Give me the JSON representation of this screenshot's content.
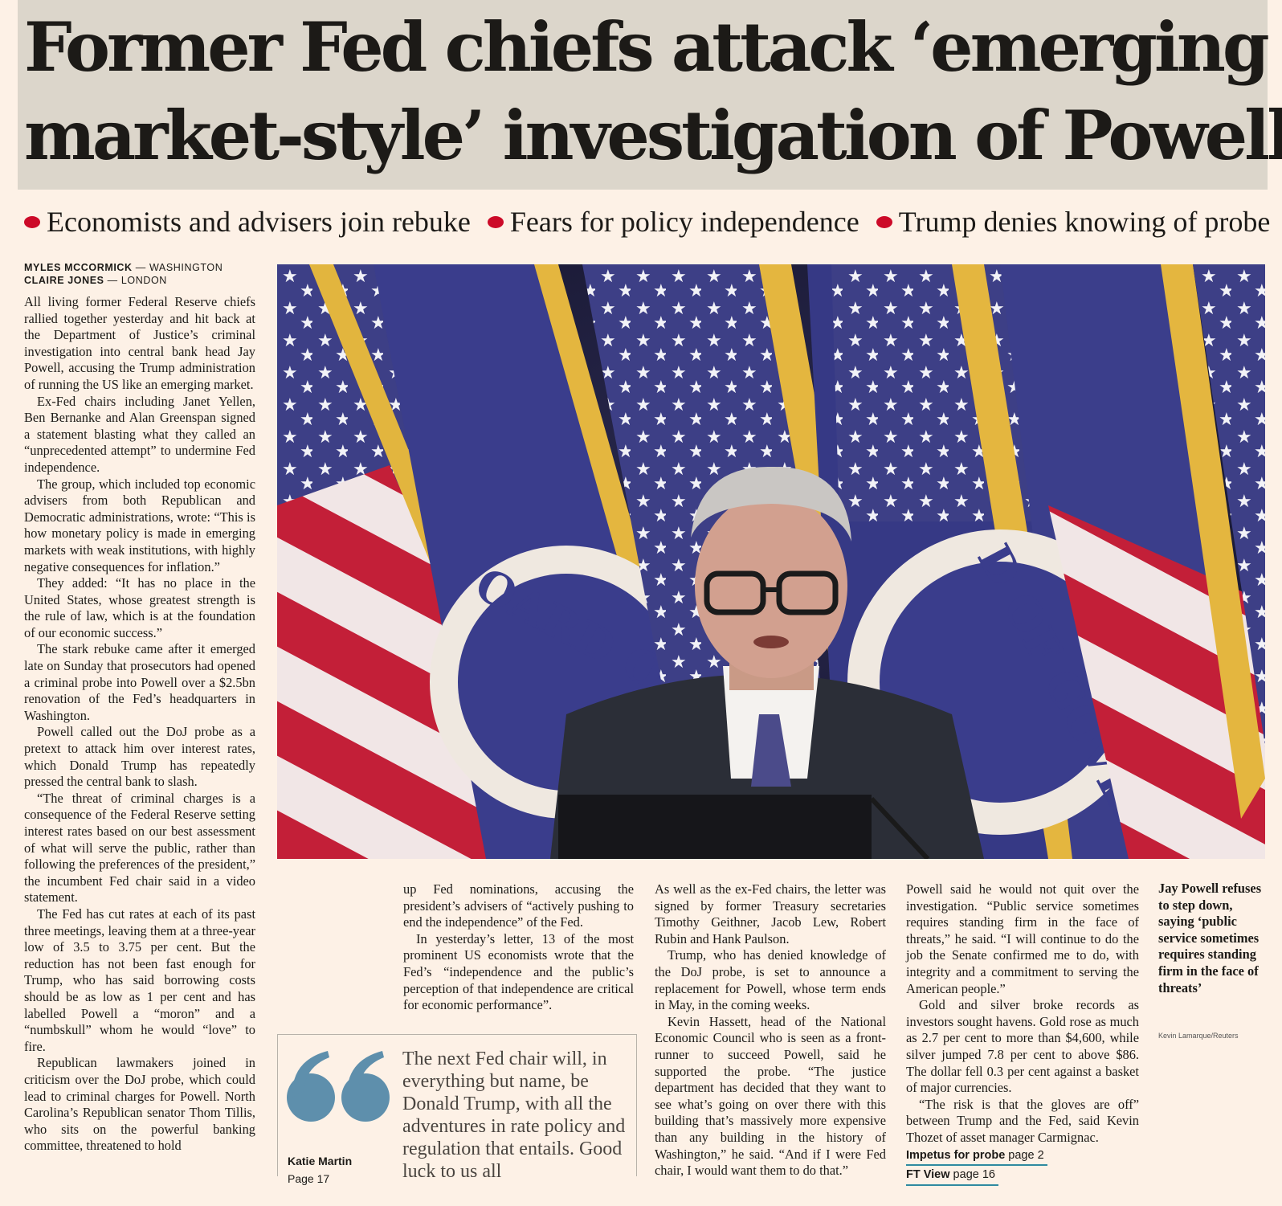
{
  "headline": {
    "line1": "Former Fed chiefs attack ‘emerging",
    "line2": "market-style’ investigation of Powell"
  },
  "subheads": [
    "Economists and advisers join rebuke",
    "Fears for policy independence",
    "Trump denies knowing of probe"
  ],
  "byline": [
    {
      "name": "MYLES MCCORMICK",
      "place": " — WASHINGTON"
    },
    {
      "name": "CLAIRE JONES",
      "place": " — LONDON"
    }
  ],
  "col1": [
    "All living former Federal Reserve chiefs rallied together yesterday and hit back at the Department of Justice’s criminal investigation into central bank head Jay Powell, accusing the Trump administration of running the US like an emerging market.",
    "Ex-Fed chairs including Janet Yellen, Ben Bernanke and Alan Greenspan signed a statement blasting what they called an “unprecedented attempt” to undermine Fed independence.",
    "The group, which included top economic advisers from both Republican and Democratic administrations, wrote: “This is how monetary policy is made in emerging markets with weak institutions, with highly negative consequences for inflation.”",
    "They added: “It has no place in the United States, whose greatest strength is the rule of law, which is at the foundation of our economic success.”",
    "The stark rebuke came after it emerged late on Sunday that prosecutors had opened a criminal probe into Powell over a $2.5bn renovation of the Fed’s headquarters in Washington.",
    "Powell called out the DoJ probe as a pretext to attack him over interest rates, which Donald Trump has repeatedly pressed the central bank to slash.",
    "“The threat of criminal charges is a consequence of the Federal Reserve setting interest rates based on our best assessment of what will serve the public, rather than following the preferences of the president,” the incumbent Fed chair said in a video statement.",
    "The Fed has cut rates at each of its past three meetings, leaving them at a three-year low of 3.5 to 3.75 per cent. But the reduction has not been fast enough for Trump, who has said borrowing costs should be as low as 1 per cent and has labelled Powell a “moron” and a “numbskull” whom he would “love” to fire.",
    "Republican lawmakers joined in criticism over the DoJ probe, which could lead to criminal charges for Powell. North Carolina’s Republican senator Thom Tillis, who sits on the powerful banking committee, threatened to hold"
  ],
  "col2": [
    "up Fed nominations, accusing the president’s advisers of “actively pushing to end the independence” of the Fed.",
    "In yesterday’s letter, 13 of the most prominent US economists wrote that the Fed’s “independence and the public’s perception of that independence are critical for economic performance”."
  ],
  "col3": [
    "As well as the ex-Fed chairs, the letter was signed by former Treasury secretaries Timothy Geithner, Jacob Lew, Robert Rubin and Hank Paulson.",
    "Trump, who has denied knowledge of the DoJ probe, is set to announce a replacement for Powell, whose term ends in May, in the coming weeks.",
    "Kevin Hassett, head of the National Economic Council who is seen as a front-runner to succeed Powell, said he supported the probe. “The justice department has decided that they want to see what’s going on over there with this building that’s massively more expensive than any building in the history of Washington,” he said. “And if I were Fed chair, I would want them to do that.”"
  ],
  "col4": [
    "Powell said he would not quit over the investigation. “Public service sometimes requires standing firm in the face of threats,” he said. “I will continue to do the job the Senate confirmed me to do, with integrity and a commitment to serving the American people.”",
    "Gold and silver broke records as investors sought havens. Gold rose as much as 2.7 per cent to more than $4,600, while silver jumped 7.8 per cent to above $86. The dollar fell 0.3 per cent against a basket of major currencies.",
    "“The risk is that the gloves are off” between Trump and the Fed, said Kevin Thozet of asset manager Carmignac."
  ],
  "refs": [
    {
      "label": "Impetus for probe",
      "page": " page 2"
    },
    {
      "label": "FT View",
      "page": " page 16"
    }
  ],
  "pullquote": {
    "text": "The next Fed chair will, in everything but name, be Donald Trump, with all the adventures in rate policy and regulation that entails. Good luck to us all",
    "author": "Katie Martin",
    "page": "Page 17"
  },
  "photo": {
    "caption": "Jay Powell refuses to step down, saying ‘public service sometimes requires standing firm in the face of threats’",
    "credit": "Kevin Lamarque/Reuters",
    "seal_text_left": "OARD OF GO",
    "seal_text_right": "D OF GOVER"
  },
  "colors": {
    "background": "#fdf1e6",
    "headline_band": "#dcd6cb",
    "bullet": "#cc0a28",
    "quote_mark": "#5e8fac",
    "ref_underline": "#2f8aa0"
  }
}
